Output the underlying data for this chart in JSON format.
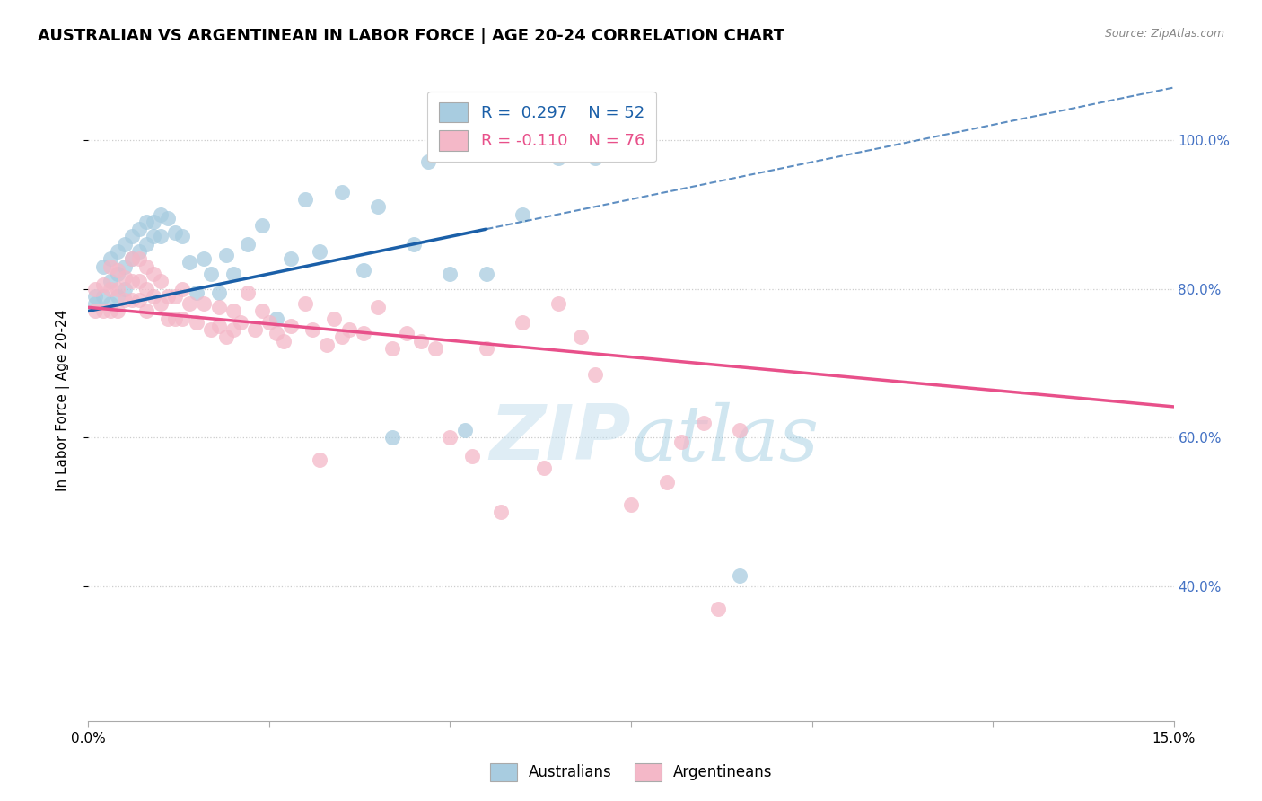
{
  "title": "AUSTRALIAN VS ARGENTINEAN IN LABOR FORCE | AGE 20-24 CORRELATION CHART",
  "source": "Source: ZipAtlas.com",
  "ylabel": "In Labor Force | Age 20-24",
  "xlim": [
    0.0,
    0.15
  ],
  "ylim": [
    0.22,
    1.08
  ],
  "yticks": [
    0.4,
    0.6,
    0.8,
    1.0
  ],
  "ytick_labels": [
    "40.0%",
    "60.0%",
    "80.0%",
    "100.0%"
  ],
  "xtick_positions": [
    0.0,
    0.025,
    0.05,
    0.075,
    0.1,
    0.125,
    0.15
  ],
  "xtick_labels": [
    "0.0%",
    "",
    "",
    "",
    "",
    "",
    "15.0%"
  ],
  "R_blue": 0.297,
  "N_blue": 52,
  "R_pink": -0.11,
  "N_pink": 76,
  "blue_scatter_color": "#a8cce0",
  "pink_scatter_color": "#f4b8c8",
  "line_blue_color": "#1a5fa8",
  "line_pink_color": "#e8508a",
  "ytick_color": "#4472c4",
  "title_fontsize": 13,
  "source_fontsize": 9,
  "tick_fontsize": 11,
  "aus_x": [
    0.001,
    0.001,
    0.002,
    0.002,
    0.003,
    0.003,
    0.003,
    0.004,
    0.004,
    0.004,
    0.005,
    0.005,
    0.005,
    0.006,
    0.006,
    0.007,
    0.007,
    0.008,
    0.008,
    0.009,
    0.009,
    0.01,
    0.01,
    0.011,
    0.012,
    0.013,
    0.014,
    0.015,
    0.016,
    0.017,
    0.018,
    0.019,
    0.02,
    0.022,
    0.024,
    0.026,
    0.028,
    0.03,
    0.032,
    0.035,
    0.038,
    0.04,
    0.042,
    0.045,
    0.047,
    0.05,
    0.052,
    0.055,
    0.06,
    0.065,
    0.07,
    0.09
  ],
  "aus_y": [
    0.79,
    0.78,
    0.83,
    0.79,
    0.84,
    0.81,
    0.78,
    0.85,
    0.82,
    0.79,
    0.86,
    0.83,
    0.8,
    0.87,
    0.84,
    0.88,
    0.85,
    0.89,
    0.86,
    0.89,
    0.87,
    0.9,
    0.87,
    0.895,
    0.875,
    0.87,
    0.835,
    0.795,
    0.84,
    0.82,
    0.795,
    0.845,
    0.82,
    0.86,
    0.885,
    0.76,
    0.84,
    0.92,
    0.85,
    0.93,
    0.825,
    0.91,
    0.6,
    0.86,
    0.97,
    0.82,
    0.61,
    0.82,
    0.9,
    0.975,
    0.975,
    0.415
  ],
  "arg_x": [
    0.001,
    0.001,
    0.002,
    0.002,
    0.003,
    0.003,
    0.003,
    0.004,
    0.004,
    0.004,
    0.005,
    0.005,
    0.006,
    0.006,
    0.006,
    0.007,
    0.007,
    0.007,
    0.008,
    0.008,
    0.008,
    0.009,
    0.009,
    0.01,
    0.01,
    0.011,
    0.011,
    0.012,
    0.012,
    0.013,
    0.013,
    0.014,
    0.015,
    0.016,
    0.017,
    0.018,
    0.018,
    0.019,
    0.02,
    0.02,
    0.021,
    0.022,
    0.023,
    0.024,
    0.025,
    0.026,
    0.027,
    0.028,
    0.03,
    0.031,
    0.032,
    0.033,
    0.034,
    0.035,
    0.036,
    0.038,
    0.04,
    0.042,
    0.044,
    0.046,
    0.048,
    0.05,
    0.053,
    0.055,
    0.057,
    0.06,
    0.063,
    0.065,
    0.068,
    0.07,
    0.075,
    0.08,
    0.082,
    0.085,
    0.087,
    0.09
  ],
  "arg_y": [
    0.8,
    0.77,
    0.805,
    0.77,
    0.83,
    0.8,
    0.77,
    0.825,
    0.8,
    0.77,
    0.815,
    0.785,
    0.84,
    0.81,
    0.785,
    0.84,
    0.81,
    0.785,
    0.83,
    0.8,
    0.77,
    0.82,
    0.79,
    0.81,
    0.78,
    0.79,
    0.76,
    0.79,
    0.76,
    0.8,
    0.76,
    0.78,
    0.755,
    0.78,
    0.745,
    0.775,
    0.75,
    0.735,
    0.77,
    0.745,
    0.755,
    0.795,
    0.745,
    0.77,
    0.755,
    0.74,
    0.73,
    0.75,
    0.78,
    0.745,
    0.57,
    0.725,
    0.76,
    0.735,
    0.745,
    0.74,
    0.775,
    0.72,
    0.74,
    0.73,
    0.72,
    0.6,
    0.575,
    0.72,
    0.5,
    0.755,
    0.56,
    0.78,
    0.735,
    0.685,
    0.51,
    0.54,
    0.595,
    0.62,
    0.37,
    0.61
  ]
}
